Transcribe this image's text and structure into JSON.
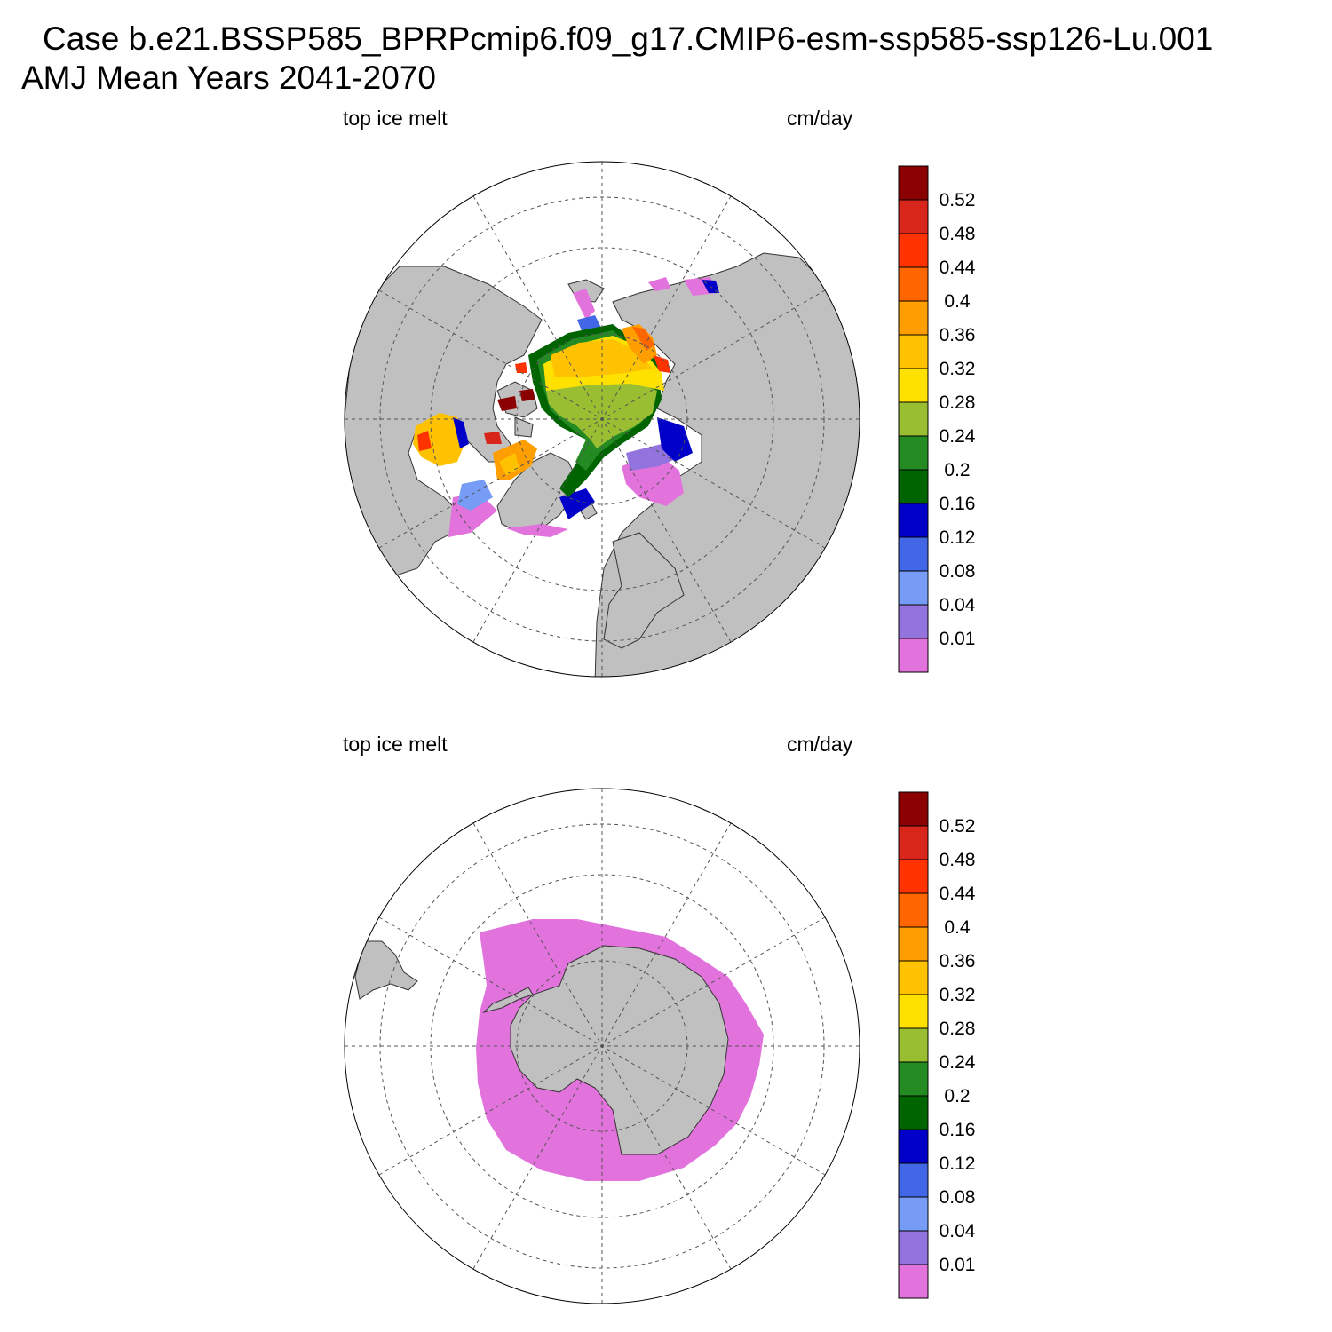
{
  "header": {
    "case_line": "Case b.e21.BSSP585_BPRPcmip6.f09_g17.CMIP6-esm-ssp585-ssp126-Lu.001",
    "period_line": "AMJ Mean   Years 2041-2070"
  },
  "colorbar": {
    "colors": [
      "#e272dc",
      "#9373de",
      "#779cf5",
      "#4166e6",
      "#0000c8",
      "#006400",
      "#238b22",
      "#9abe31",
      "#ffe100",
      "#ffc200",
      "#ff9e00",
      "#ff6600",
      "#ff3300",
      "#d8261a",
      "#8b0000"
    ],
    "labels": [
      "0.01",
      "0.04",
      "0.08",
      "0.12",
      "0.16",
      "0.2",
      "0.24",
      "0.28",
      "0.32",
      "0.36",
      "0.4",
      "0.44",
      "0.48",
      "0.52"
    ]
  },
  "panels": [
    {
      "id": "north",
      "hemisphere": "Northern Hemisphere",
      "variable_label": "top ice melt",
      "units_label": "cm/day"
    },
    {
      "id": "south",
      "hemisphere": "Southern Hemisphere",
      "variable_label": "top ice melt",
      "units_label": "cm/day"
    }
  ],
  "map_style": {
    "land_color": "#c0c0c0",
    "ocean_color": "#ffffff",
    "grid_color": "#555555",
    "projection": "polar stereographic"
  }
}
